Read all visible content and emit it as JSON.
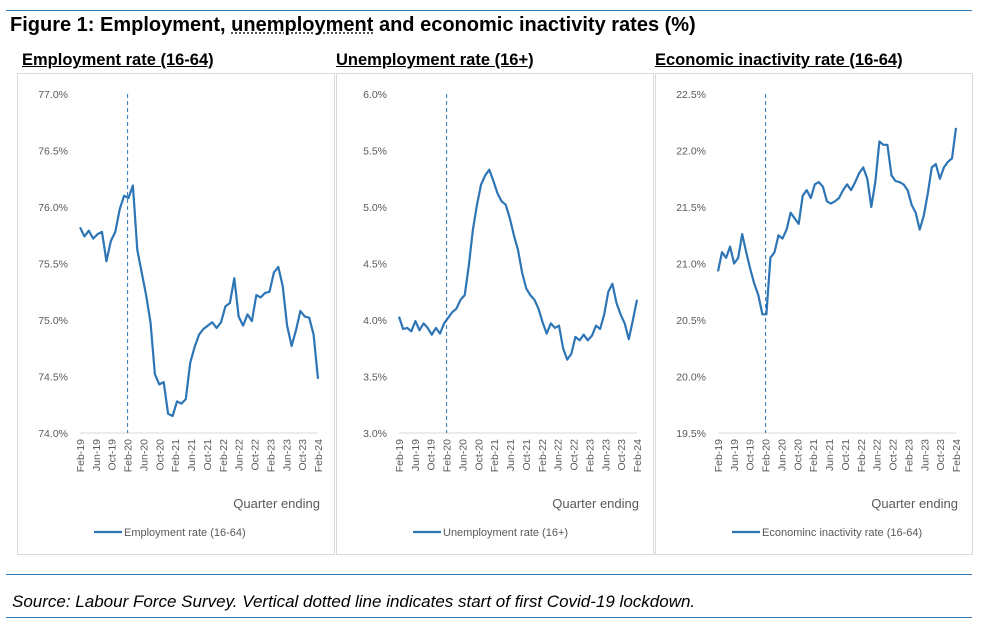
{
  "title": {
    "prefix": "Figure 1: Employment, ",
    "underlined": "unemployment",
    "suffix": " and economic inactivity rates (%)"
  },
  "source": "Source: Labour Force Survey. Vertical dotted line indicates start of first Covid-19 lockdown.",
  "colors": {
    "series": "#2e75b6",
    "axis": "#d9d9d9",
    "text": "#595959",
    "rule": "#2e75b6"
  },
  "chart_data": [
    {
      "type": "line",
      "panel_title": "Employment rate (16-64)",
      "xlabel": "Quarter ending",
      "ylabel": "",
      "ylim": [
        74.0,
        77.0
      ],
      "ytick_labels": [
        "77.0%",
        "76.5%",
        "76.0%",
        "75.5%",
        "75.0%",
        "74.5%",
        "74.0%"
      ],
      "xtick_labels": [
        "Feb-19",
        "Jun-19",
        "Oct-19",
        "Feb-20",
        "Jun-20",
        "Oct-20",
        "Feb-21",
        "Jun-21",
        "Oct-21",
        "Feb-22",
        "Jun-22",
        "Oct-22",
        "Feb-23",
        "Jun-23",
        "Oct-23",
        "Feb-24"
      ],
      "vline_at": "Feb-20",
      "legend": "Employment rate (16-64)",
      "legend_position": "bottom",
      "series": [
        {
          "name": "Employment rate (16-64)",
          "values": [
            75.82,
            75.74,
            75.79,
            75.72,
            75.76,
            75.78,
            75.52,
            75.7,
            75.78,
            75.98,
            76.1,
            76.08,
            76.19,
            75.62,
            75.42,
            75.22,
            74.98,
            74.52,
            74.43,
            74.45,
            74.17,
            74.15,
            74.28,
            74.26,
            74.3,
            74.62,
            74.76,
            74.87,
            74.92,
            74.95,
            74.98,
            74.93,
            74.98,
            75.12,
            75.15,
            75.37,
            75.03,
            74.95,
            75.05,
            74.99,
            75.22,
            75.2,
            75.24,
            75.25,
            75.42,
            75.47,
            75.3,
            74.95,
            74.77,
            74.91,
            75.08,
            75.03,
            75.02,
            74.87,
            74.48
          ]
        }
      ]
    },
    {
      "type": "line",
      "panel_title": "Unemployment rate (16+)",
      "xlabel": "Quarter ending",
      "ylabel": "",
      "ylim": [
        3.0,
        6.0
      ],
      "ytick_labels": [
        "6.0%",
        "5.5%",
        "5.0%",
        "4.5%",
        "4.0%",
        "3.5%",
        "3.0%"
      ],
      "xtick_labels": [
        "Feb-19",
        "Jun-19",
        "Oct-19",
        "Feb-20",
        "Jun-20",
        "Oct-20",
        "Feb-21",
        "Jun-21",
        "Oct-21",
        "Feb-22",
        "Jun-22",
        "Oct-22",
        "Feb-23",
        "Jun-23",
        "Oct-23",
        "Feb-24"
      ],
      "vline_at": "Feb-20",
      "legend": "Unemployment rate (16+)",
      "legend_position": "bottom",
      "series": [
        {
          "name": "Unemployment rate (16+)",
          "values": [
            4.03,
            3.92,
            3.93,
            3.9,
            3.99,
            3.91,
            3.97,
            3.93,
            3.87,
            3.93,
            3.88,
            3.97,
            4.02,
            4.07,
            4.1,
            4.18,
            4.22,
            4.48,
            4.8,
            5.02,
            5.2,
            5.28,
            5.33,
            5.23,
            5.12,
            5.05,
            5.02,
            4.9,
            4.75,
            4.62,
            4.42,
            4.28,
            4.22,
            4.18,
            4.1,
            3.98,
            3.88,
            3.97,
            3.93,
            3.95,
            3.75,
            3.65,
            3.7,
            3.85,
            3.82,
            3.87,
            3.82,
            3.86,
            3.95,
            3.92,
            4.05,
            4.25,
            4.32,
            4.15,
            4.05,
            3.97,
            3.83,
            4.0,
            4.18
          ]
        }
      ]
    },
    {
      "type": "line",
      "panel_title": "Economic inactivity rate (16-64)",
      "xlabel": "Quarter ending",
      "ylabel": "",
      "ylim": [
        19.5,
        22.5
      ],
      "ytick_labels": [
        "22.5%",
        "22.0%",
        "21.5%",
        "21.0%",
        "20.5%",
        "20.0%",
        "19.5%"
      ],
      "xtick_labels": [
        "Feb-19",
        "Jun-19",
        "Oct-19",
        "Feb-20",
        "Jun-20",
        "Oct-20",
        "Feb-21",
        "Jun-21",
        "Oct-21",
        "Feb-22",
        "Jun-22",
        "Oct-22",
        "Feb-23",
        "Jun-23",
        "Oct-23",
        "Feb-24"
      ],
      "vline_at": "Feb-20",
      "legend": "Econominc inactivity rate (16-64)",
      "legend_position": "bottom",
      "series": [
        {
          "name": "Economic inactivity rate (16-64)",
          "values": [
            20.93,
            21.1,
            21.05,
            21.15,
            21.0,
            21.05,
            21.26,
            21.1,
            20.95,
            20.82,
            20.72,
            20.55,
            20.55,
            21.05,
            21.1,
            21.25,
            21.22,
            21.3,
            21.45,
            21.4,
            21.35,
            21.6,
            21.65,
            21.58,
            21.7,
            21.72,
            21.68,
            21.55,
            21.53,
            21.55,
            21.58,
            21.65,
            21.7,
            21.65,
            21.72,
            21.8,
            21.85,
            21.75,
            21.5,
            21.72,
            22.08,
            22.05,
            22.05,
            21.78,
            21.73,
            21.72,
            21.7,
            21.65,
            21.52,
            21.45,
            21.3,
            21.42,
            21.62,
            21.85,
            21.88,
            21.75,
            21.85,
            21.9,
            21.93,
            22.2
          ]
        }
      ]
    }
  ]
}
